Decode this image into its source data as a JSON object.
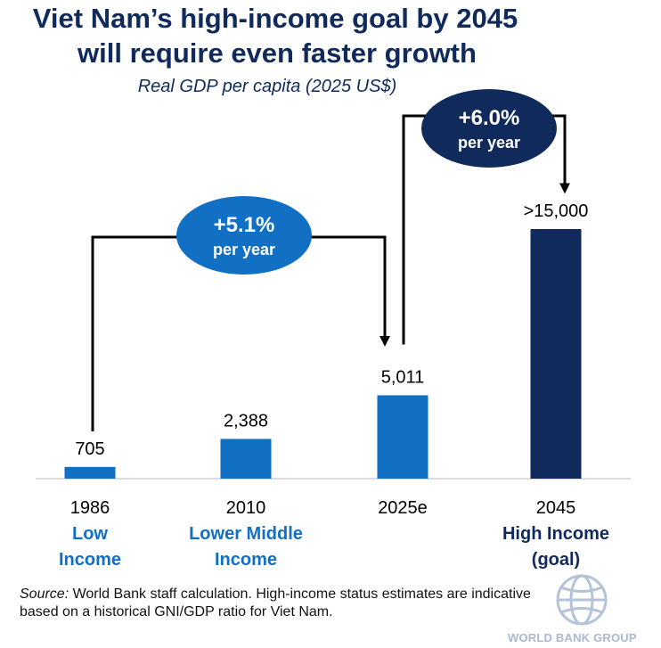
{
  "header": {
    "title_line1": "Viet Nam’s high-income goal by 2045",
    "title_line2": "will require even faster growth",
    "subtitle": "Real GDP per capita (2025 US$)"
  },
  "chart_data": {
    "type": "bar",
    "title": "Viet Nam’s high-income goal by 2045 will require even faster growth",
    "subtitle": "Real GDP per capita (2025 US$)",
    "categories": [
      "1986",
      "2010",
      "2025e",
      "2045"
    ],
    "values": [
      705,
      2388,
      5011,
      15000
    ],
    "value_labels": [
      "705",
      "2,388",
      "5,011",
      ">15,000"
    ],
    "income_labels": [
      [
        "Low",
        "Income"
      ],
      [
        "Lower Middle",
        "Income"
      ],
      [],
      [
        "High Income",
        "(goal)"
      ]
    ],
    "bar_colors": [
      "#1170c4",
      "#1170c4",
      "#1170c4",
      "#0f2a5b"
    ],
    "income_label_colors": [
      "#1170c4",
      "#1170c4",
      "#1170c4",
      "#0f2a5b"
    ],
    "ylim": [
      0,
      15000
    ],
    "xlabel": "",
    "ylabel": "",
    "annotations": [
      {
        "from": "1986",
        "to": "2025e",
        "rate": "+5.1%",
        "unit": "per year",
        "color": "#1170c4"
      },
      {
        "from": "2025e",
        "to": "2045",
        "rate": "+6.0%",
        "unit": "per year",
        "color": "#0f2a5b"
      }
    ]
  },
  "footer": {
    "source_label": "Source:",
    "source_text": " World Bank staff calculation. High-income status estimates are indicative based on a historical GNI/GDP ratio for Viet Nam.",
    "logo_text": "WORLD BANK GROUP"
  },
  "colors": {
    "navy": "#0f2a5b",
    "blue": "#1170c4",
    "logo": "#a9b9cf"
  }
}
